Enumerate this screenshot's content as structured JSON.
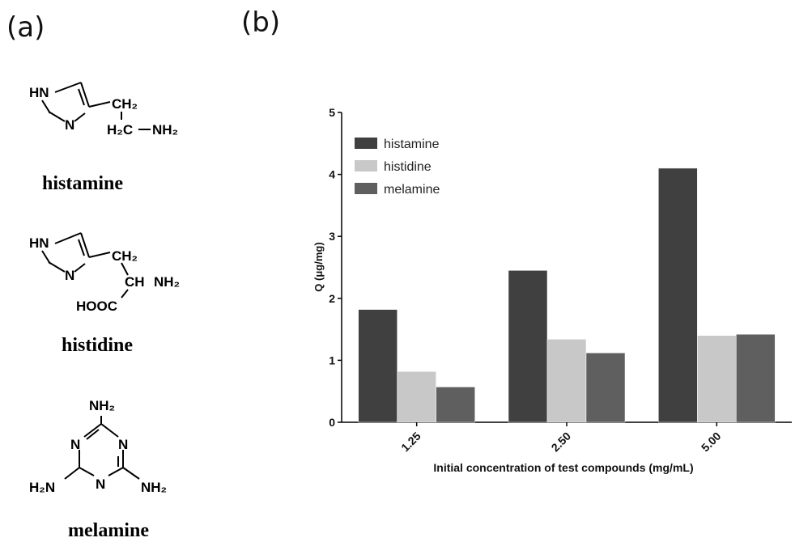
{
  "panels": {
    "a": "(a)",
    "b": "(b)"
  },
  "structures": {
    "histamine": {
      "name": "histamine",
      "atoms": {
        "hn": "HN",
        "n": "N",
        "ch2_top": "CH₂",
        "h2c": "H₂C",
        "dash": "−",
        "nh2": "NH₂"
      }
    },
    "histidine": {
      "name": "histidine",
      "atoms": {
        "hn": "HN",
        "n": "N",
        "ch2": "CH₂",
        "ch": "CH",
        "nh2": "NH₂",
        "hooc": "HOOC"
      }
    },
    "melamine": {
      "name": "melamine",
      "atoms": {
        "nh2_top": "NH₂",
        "n_left": "N",
        "n_right": "N",
        "n_bottom": "N",
        "h2n": "H₂N",
        "nh2_right": "NH₂"
      }
    }
  },
  "chart_data": {
    "type": "bar",
    "categories": [
      "1.25",
      "2.50",
      "5.00"
    ],
    "series": [
      {
        "name": "histamine",
        "values": [
          1.82,
          2.45,
          4.1
        ],
        "color": "#404040"
      },
      {
        "name": "histidine",
        "values": [
          0.82,
          1.34,
          1.4
        ],
        "color": "#c8c8c8"
      },
      {
        "name": "melamine",
        "values": [
          0.57,
          1.12,
          1.42
        ],
        "color": "#5f5f5f"
      }
    ],
    "xlabel": "Initial concentration of test compounds (mg/mL)",
    "ylabel": "Q (μg/mg)",
    "ylim": [
      0,
      5
    ],
    "yticks": [
      "0",
      "1",
      "2",
      "3",
      "4",
      "5"
    ],
    "grid": false,
    "legend": "top-left"
  }
}
